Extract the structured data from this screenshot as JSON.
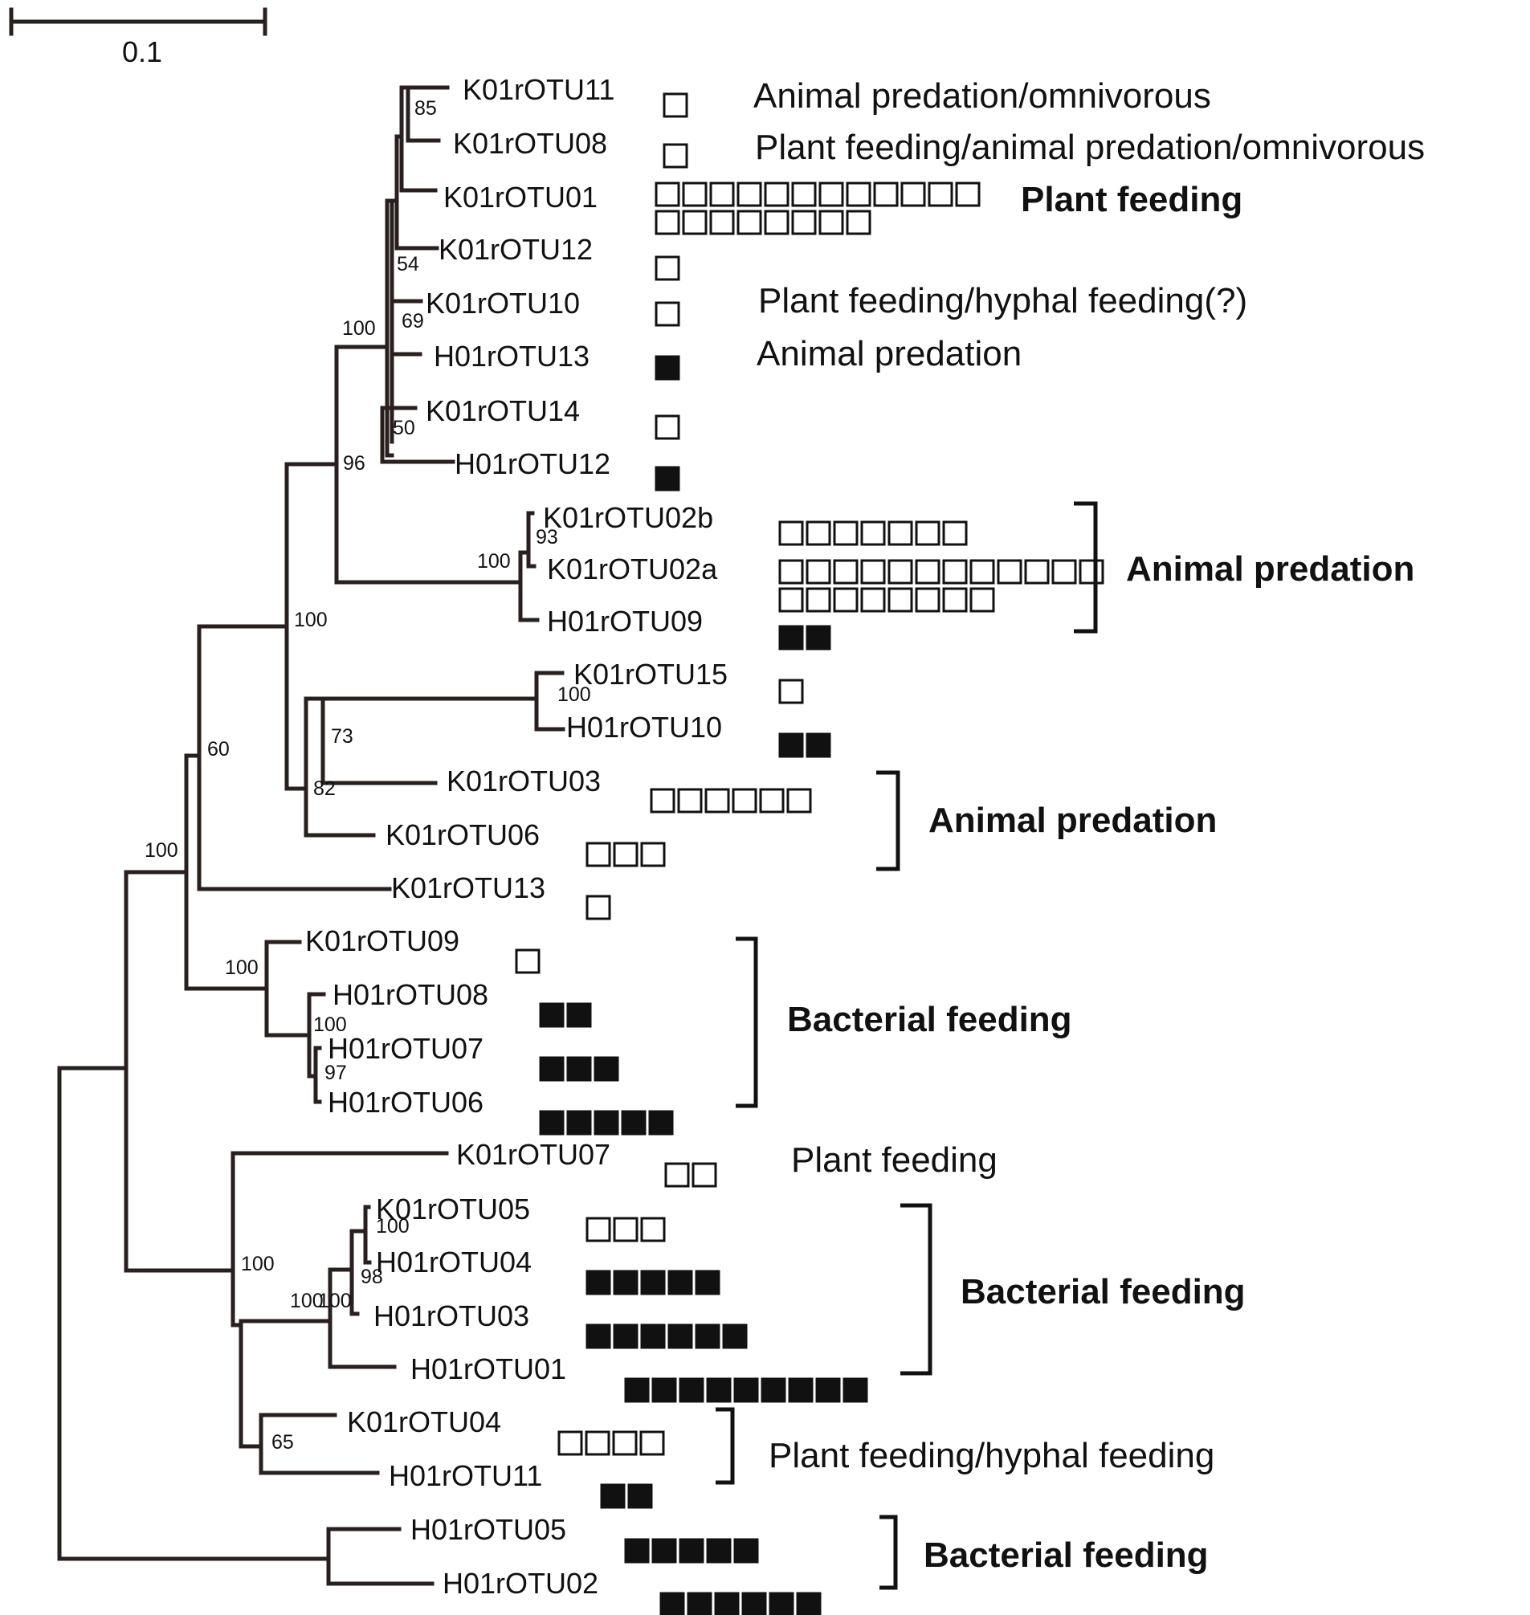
{
  "scale_bar": {
    "label": "0.1"
  },
  "leaves": [
    {
      "label": "K01rOTU11",
      "open": 1,
      "filled": 0
    },
    {
      "label": "K01rOTU08",
      "open": 1,
      "filled": 0
    },
    {
      "label": "K01rOTU01",
      "open": 20,
      "filled": 0
    },
    {
      "label": "K01rOTU12",
      "open": 1,
      "filled": 0
    },
    {
      "label": "K01rOTU10",
      "open": 1,
      "filled": 0
    },
    {
      "label": "H01rOTU13",
      "open": 0,
      "filled": 1
    },
    {
      "label": "K01rOTU14",
      "open": 1,
      "filled": 0
    },
    {
      "label": "H01rOTU12",
      "open": 0,
      "filled": 1
    },
    {
      "label": "K01rOTU02b",
      "open": 7,
      "filled": 0
    },
    {
      "label": "K01rOTU02a",
      "open": 20,
      "filled": 0
    },
    {
      "label": "H01rOTU09",
      "open": 0,
      "filled": 2
    },
    {
      "label": "K01rOTU15",
      "open": 1,
      "filled": 0
    },
    {
      "label": "H01rOTU10",
      "open": 0,
      "filled": 2
    },
    {
      "label": "K01rOTU03",
      "open": 6,
      "filled": 0
    },
    {
      "label": "K01rOTU06",
      "open": 3,
      "filled": 0
    },
    {
      "label": "K01rOTU13",
      "open": 1,
      "filled": 0
    },
    {
      "label": "K01rOTU09",
      "open": 1,
      "filled": 0
    },
    {
      "label": "H01rOTU08",
      "open": 0,
      "filled": 2
    },
    {
      "label": "H01rOTU07",
      "open": 0,
      "filled": 3
    },
    {
      "label": "H01rOTU06",
      "open": 0,
      "filled": 5
    },
    {
      "label": "K01rOTU07",
      "open": 2,
      "filled": 0
    },
    {
      "label": "K01rOTU05",
      "open": 3,
      "filled": 0
    },
    {
      "label": "H01rOTU04",
      "open": 0,
      "filled": 5
    },
    {
      "label": "H01rOTU03",
      "open": 0,
      "filled": 6
    },
    {
      "label": "H01rOTU01",
      "open": 0,
      "filled": 9
    },
    {
      "label": "K01rOTU04",
      "open": 4,
      "filled": 0
    },
    {
      "label": "H01rOTU11",
      "open": 0,
      "filled": 2
    },
    {
      "label": "H01rOTU05",
      "open": 0,
      "filled": 5
    },
    {
      "label": "H01rOTU02",
      "open": 0,
      "filled": 6
    }
  ],
  "bootstrap_values": [
    "85",
    "54",
    "69",
    "100",
    "50",
    "96",
    "93",
    "100",
    "100",
    "100",
    "73",
    "82",
    "60",
    "100",
    "100",
    "100",
    "97",
    "100",
    "100",
    "98",
    "100",
    "100",
    "65"
  ],
  "annotations": [
    {
      "text": "Animal predation/omnivorous",
      "bold": false
    },
    {
      "text": "Plant feeding/animal predation/omnivorous",
      "bold": false
    },
    {
      "text": "Plant feeding",
      "bold": true
    },
    {
      "text": "Plant feeding/hyphal feeding(?)",
      "bold": false
    },
    {
      "text": "Animal predation",
      "bold": false
    },
    {
      "text": "Animal predation",
      "bold": true
    },
    {
      "text": "Animal predation",
      "bold": true
    },
    {
      "text": "Bacterial feeding",
      "bold": true
    },
    {
      "text": "Plant feeding",
      "bold": false
    },
    {
      "text": "Bacterial feeding",
      "bold": true
    },
    {
      "text": "Plant feeding/hyphal feeding",
      "bold": false
    },
    {
      "text": "Bacterial feeding",
      "bold": true
    }
  ]
}
